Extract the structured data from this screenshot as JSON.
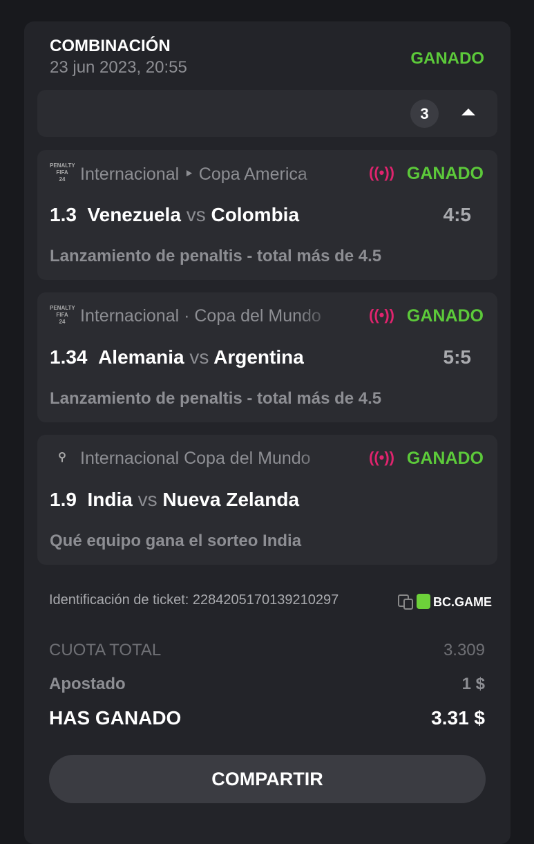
{
  "header": {
    "title": "COMBINACIÓN",
    "date": "23 jun 2023, 20:55",
    "status": "GANADO",
    "status_color": "#5cc93a"
  },
  "selections_count": "3",
  "events": [
    {
      "league": "Internacional ‣ Copa America",
      "icon": "fifa-penalty-icon",
      "icon_text": "PENALTY FIFA 24",
      "status": "GANADO",
      "odds": "1.3",
      "home": "Venezuela",
      "vs": "vs",
      "away": "Colombia",
      "score": "4:5",
      "market": "Lanzamiento de penaltis - total más de 4.5"
    },
    {
      "league": "Internacional · Copa del Mundo",
      "icon": "fifa-penalty-icon",
      "icon_text": "PENALTY FIFA 24",
      "status": "GANADO",
      "odds": "1.34",
      "home": "Alemania",
      "vs": "vs",
      "away": "Argentina",
      "score": "5:5",
      "market": "Lanzamiento de penaltis - total más de 4.5"
    },
    {
      "league": "Internacional Copa del Mundo",
      "icon": "cricket-24-icon",
      "icon_text": "24",
      "status": "GANADO",
      "odds": "1.9",
      "home": "India",
      "vs": "vs",
      "away": "Nueva Zelanda",
      "score": "",
      "market": "Qué equipo gana el sorteo India"
    }
  ],
  "ticket": {
    "label": "Identificación de ticket: 2284205170139210297",
    "brand": "BC.GAME"
  },
  "summary": {
    "total_odds_label": "CUOTA TOTAL",
    "total_odds": "3.309",
    "stake_label": "Apostado",
    "stake": "1 $",
    "won_label": "HAS GANADO",
    "won": "3.31 $"
  },
  "share_label": "COMPARTIR",
  "live_color": "#e0246e"
}
